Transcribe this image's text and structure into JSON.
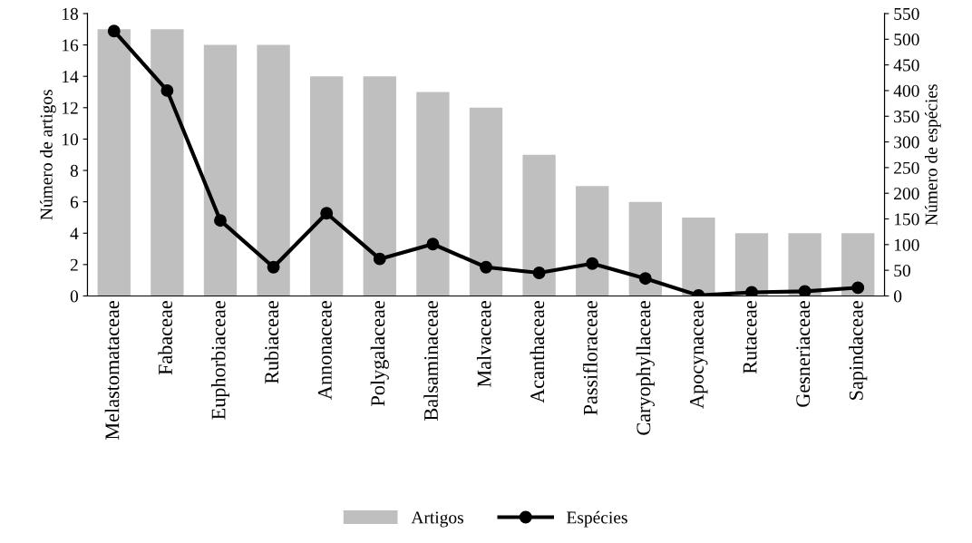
{
  "chart_data": {
    "type": "bar",
    "ylabel": "Número de artigos",
    "y2label": "Número de espécies",
    "categories": [
      "Melastomataceae",
      "Fabaceae",
      "Euphorbiaceae",
      "Rubiaceae",
      "Annonaceae",
      "Polygalaceae",
      "Balsaminaceae",
      "Malvaceae",
      "Acanthaceae",
      "Passifloraceae",
      "Caryophyllaceae",
      "Apocynaceae",
      "Rutaceae",
      "Gesneriaceae",
      "Sapindaceae"
    ],
    "series": [
      {
        "name": "Artigos",
        "color": "#bfbfbf",
        "values": [
          17,
          17,
          16,
          16,
          14,
          14,
          13,
          12,
          9,
          7,
          6,
          5,
          4,
          4,
          4
        ]
      },
      {
        "name": "Espécies",
        "type": "line",
        "axis": "y2",
        "color": "#000000",
        "marker": "circle",
        "values": [
          516,
          400,
          147,
          56,
          161,
          72,
          101,
          56,
          45,
          63,
          34,
          1,
          7,
          9,
          16
        ]
      }
    ],
    "ylim": [
      0,
      18
    ],
    "yticks": [
      0,
      2,
      4,
      6,
      8,
      10,
      12,
      14,
      16,
      18
    ],
    "y2lim": [
      0,
      550
    ],
    "y2ticks": [
      0,
      50,
      100,
      150,
      200,
      250,
      300,
      350,
      400,
      450,
      500,
      550
    ],
    "grid": false,
    "legend": "bottom"
  }
}
